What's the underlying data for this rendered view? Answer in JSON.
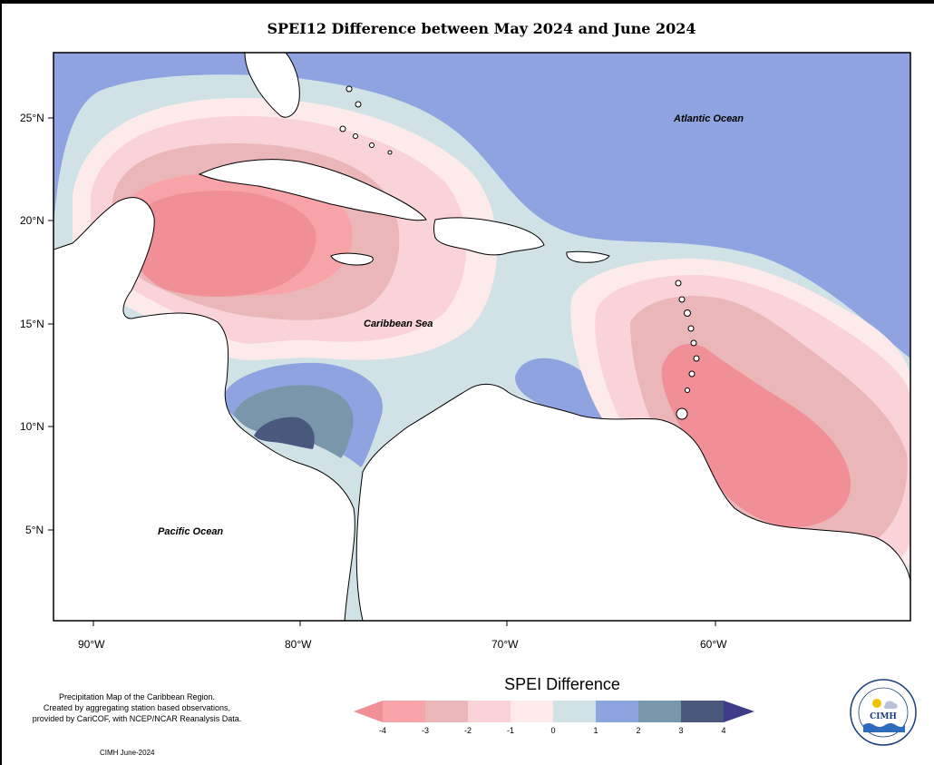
{
  "title": "SPEI12 Difference between May 2024 and June 2024",
  "labels": {
    "atlantic": "Atlantic Ocean",
    "caribbean": "Caribbean Sea",
    "pacific": "Pacific Ocean"
  },
  "axes": {
    "lat_ticks": [
      "25°N",
      "20°N",
      "15°N",
      "10°N",
      "5°N"
    ],
    "lon_ticks": [
      "90°W",
      "80°W",
      "70°W",
      "60°W"
    ]
  },
  "legend": {
    "title": "SPEI Difference",
    "ticks": [
      "-4",
      "-3",
      "-2",
      "-1",
      "0",
      "1",
      "2",
      "3",
      "4"
    ],
    "colors": [
      "#f08f95",
      "#f7a3a8",
      "#eab6b8",
      "#f9d3d8",
      "#fcebea",
      "#d0e2e6",
      "#8ea3df",
      "#7a96aa",
      "#4a587e",
      "#3d3d8a"
    ]
  },
  "notes": {
    "line1": "Precipitation Map of the Caribbean Region.",
    "line2": "Created by aggregating station based observations,",
    "line3": "provided by CariCOF, with NCEP/NCAR Reanalysis Data."
  },
  "credit": "CIMH June-2024",
  "logo": {
    "text": "CIMH"
  }
}
